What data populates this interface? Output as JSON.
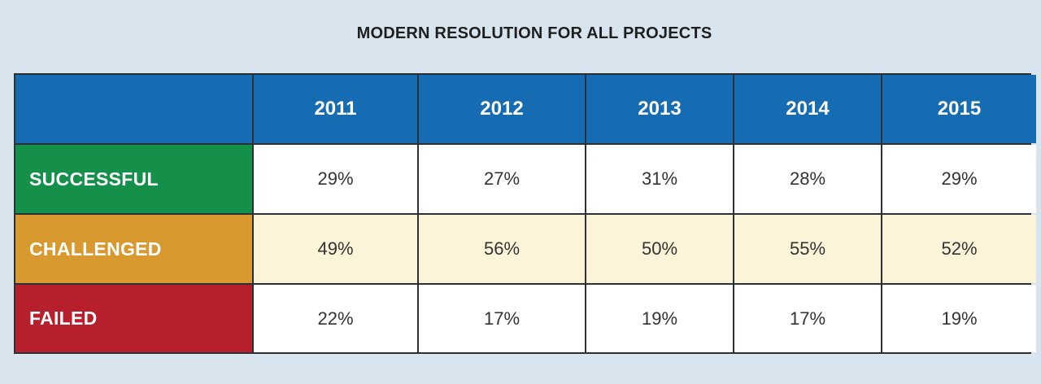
{
  "colors": {
    "header": "#166cb3",
    "successful": "#14904a",
    "challenged": "#d8992e",
    "failed": "#b61f2b"
  },
  "chart_data": {
    "type": "table",
    "title": "MODERN RESOLUTION FOR ALL PROJECTS",
    "columns": [
      "2011",
      "2012",
      "2013",
      "2014",
      "2015"
    ],
    "rows": [
      {
        "label": "SUCCESSFUL",
        "values": [
          "29%",
          "27%",
          "31%",
          "28%",
          "29%"
        ]
      },
      {
        "label": "CHALLENGED",
        "values": [
          "49%",
          "56%",
          "50%",
          "55%",
          "52%"
        ]
      },
      {
        "label": "FAILED",
        "values": [
          "22%",
          "17%",
          "19%",
          "17%",
          "19%"
        ]
      }
    ]
  }
}
